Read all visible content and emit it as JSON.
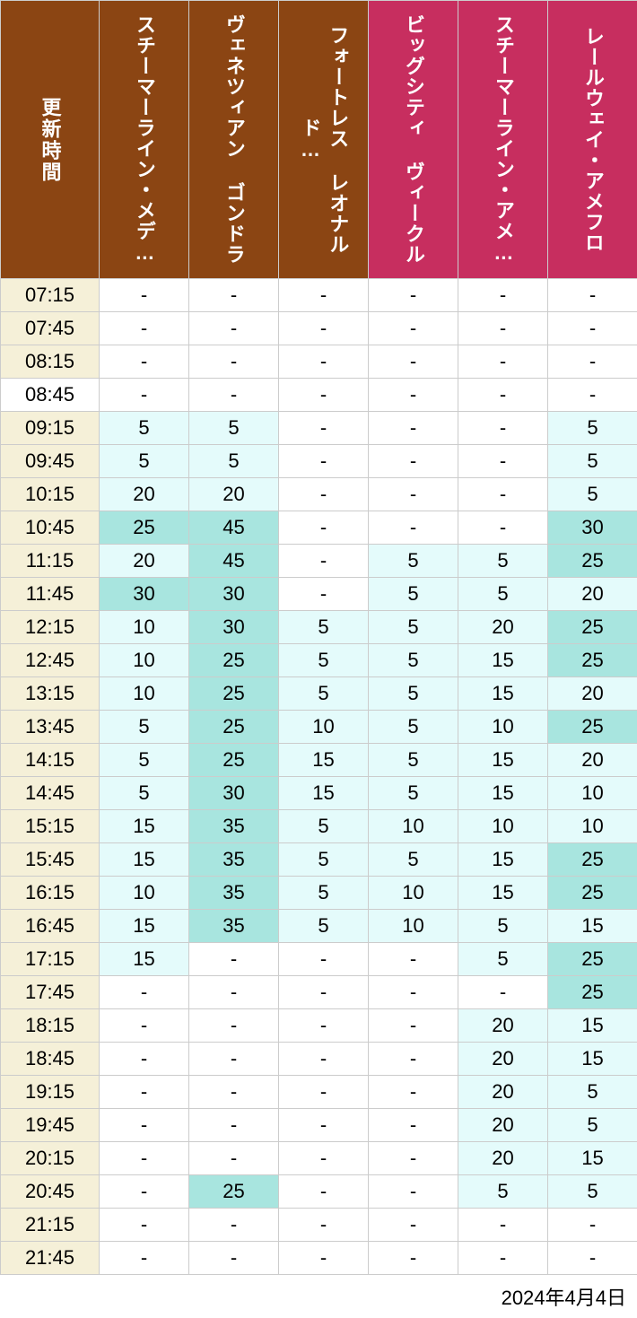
{
  "colors": {
    "header_brown": "#8b4513",
    "header_pink": "#c72e5f",
    "time_bg_cream": "#f5f0d8",
    "time_bg_white": "#ffffff",
    "cell_white": "#ffffff",
    "cell_light_cyan": "#e4fbfb",
    "cell_cyan": "#a8e5df",
    "border": "#cccccc",
    "text_dark": "#333333"
  },
  "fonts": {
    "header_size": 22,
    "cell_size": 22,
    "footer_size": 22
  },
  "headers": {
    "time": "更新時間",
    "attractions": [
      {
        "label": "スチーマーライン・メデ…",
        "color": "#8b4513"
      },
      {
        "label": "ヴェネツィアン ゴンドラ",
        "color": "#8b4513"
      },
      {
        "label": "フォートレス レオナルド…",
        "color": "#8b4513"
      },
      {
        "label": "ビッグシティ ヴィークル",
        "color": "#c72e5f"
      },
      {
        "label": "スチーマーライン・アメ…",
        "color": "#c72e5f"
      },
      {
        "label": "レールウェイ・アメフロ",
        "color": "#c72e5f"
      }
    ]
  },
  "rows": [
    {
      "time": "07:15",
      "time_bg": "#f5f0d8",
      "cells": [
        {
          "v": "-",
          "bg": "#ffffff"
        },
        {
          "v": "-",
          "bg": "#ffffff"
        },
        {
          "v": "-",
          "bg": "#ffffff"
        },
        {
          "v": "-",
          "bg": "#ffffff"
        },
        {
          "v": "-",
          "bg": "#ffffff"
        },
        {
          "v": "-",
          "bg": "#ffffff"
        }
      ]
    },
    {
      "time": "07:45",
      "time_bg": "#f5f0d8",
      "cells": [
        {
          "v": "-",
          "bg": "#ffffff"
        },
        {
          "v": "-",
          "bg": "#ffffff"
        },
        {
          "v": "-",
          "bg": "#ffffff"
        },
        {
          "v": "-",
          "bg": "#ffffff"
        },
        {
          "v": "-",
          "bg": "#ffffff"
        },
        {
          "v": "-",
          "bg": "#ffffff"
        }
      ]
    },
    {
      "time": "08:15",
      "time_bg": "#f5f0d8",
      "cells": [
        {
          "v": "-",
          "bg": "#ffffff"
        },
        {
          "v": "-",
          "bg": "#ffffff"
        },
        {
          "v": "-",
          "bg": "#ffffff"
        },
        {
          "v": "-",
          "bg": "#ffffff"
        },
        {
          "v": "-",
          "bg": "#ffffff"
        },
        {
          "v": "-",
          "bg": "#ffffff"
        }
      ]
    },
    {
      "time": "08:45",
      "time_bg": "#ffffff",
      "cells": [
        {
          "v": "-",
          "bg": "#ffffff"
        },
        {
          "v": "-",
          "bg": "#ffffff"
        },
        {
          "v": "-",
          "bg": "#ffffff"
        },
        {
          "v": "-",
          "bg": "#ffffff"
        },
        {
          "v": "-",
          "bg": "#ffffff"
        },
        {
          "v": "-",
          "bg": "#ffffff"
        }
      ]
    },
    {
      "time": "09:15",
      "time_bg": "#f5f0d8",
      "cells": [
        {
          "v": "5",
          "bg": "#e4fbfb"
        },
        {
          "v": "5",
          "bg": "#e4fbfb"
        },
        {
          "v": "-",
          "bg": "#ffffff"
        },
        {
          "v": "-",
          "bg": "#ffffff"
        },
        {
          "v": "-",
          "bg": "#ffffff"
        },
        {
          "v": "5",
          "bg": "#e4fbfb"
        }
      ]
    },
    {
      "time": "09:45",
      "time_bg": "#f5f0d8",
      "cells": [
        {
          "v": "5",
          "bg": "#e4fbfb"
        },
        {
          "v": "5",
          "bg": "#e4fbfb"
        },
        {
          "v": "-",
          "bg": "#ffffff"
        },
        {
          "v": "-",
          "bg": "#ffffff"
        },
        {
          "v": "-",
          "bg": "#ffffff"
        },
        {
          "v": "5",
          "bg": "#e4fbfb"
        }
      ]
    },
    {
      "time": "10:15",
      "time_bg": "#f5f0d8",
      "cells": [
        {
          "v": "20",
          "bg": "#e4fbfb"
        },
        {
          "v": "20",
          "bg": "#e4fbfb"
        },
        {
          "v": "-",
          "bg": "#ffffff"
        },
        {
          "v": "-",
          "bg": "#ffffff"
        },
        {
          "v": "-",
          "bg": "#ffffff"
        },
        {
          "v": "5",
          "bg": "#e4fbfb"
        }
      ]
    },
    {
      "time": "10:45",
      "time_bg": "#f5f0d8",
      "cells": [
        {
          "v": "25",
          "bg": "#a8e5df"
        },
        {
          "v": "45",
          "bg": "#a8e5df"
        },
        {
          "v": "-",
          "bg": "#ffffff"
        },
        {
          "v": "-",
          "bg": "#ffffff"
        },
        {
          "v": "-",
          "bg": "#ffffff"
        },
        {
          "v": "30",
          "bg": "#a8e5df"
        }
      ]
    },
    {
      "time": "11:15",
      "time_bg": "#f5f0d8",
      "cells": [
        {
          "v": "20",
          "bg": "#e4fbfb"
        },
        {
          "v": "45",
          "bg": "#a8e5df"
        },
        {
          "v": "-",
          "bg": "#ffffff"
        },
        {
          "v": "5",
          "bg": "#e4fbfb"
        },
        {
          "v": "5",
          "bg": "#e4fbfb"
        },
        {
          "v": "25",
          "bg": "#a8e5df"
        }
      ]
    },
    {
      "time": "11:45",
      "time_bg": "#f5f0d8",
      "cells": [
        {
          "v": "30",
          "bg": "#a8e5df"
        },
        {
          "v": "30",
          "bg": "#a8e5df"
        },
        {
          "v": "-",
          "bg": "#ffffff"
        },
        {
          "v": "5",
          "bg": "#e4fbfb"
        },
        {
          "v": "5",
          "bg": "#e4fbfb"
        },
        {
          "v": "20",
          "bg": "#e4fbfb"
        }
      ]
    },
    {
      "time": "12:15",
      "time_bg": "#f5f0d8",
      "cells": [
        {
          "v": "10",
          "bg": "#e4fbfb"
        },
        {
          "v": "30",
          "bg": "#a8e5df"
        },
        {
          "v": "5",
          "bg": "#e4fbfb"
        },
        {
          "v": "5",
          "bg": "#e4fbfb"
        },
        {
          "v": "20",
          "bg": "#e4fbfb"
        },
        {
          "v": "25",
          "bg": "#a8e5df"
        }
      ]
    },
    {
      "time": "12:45",
      "time_bg": "#f5f0d8",
      "cells": [
        {
          "v": "10",
          "bg": "#e4fbfb"
        },
        {
          "v": "25",
          "bg": "#a8e5df"
        },
        {
          "v": "5",
          "bg": "#e4fbfb"
        },
        {
          "v": "5",
          "bg": "#e4fbfb"
        },
        {
          "v": "15",
          "bg": "#e4fbfb"
        },
        {
          "v": "25",
          "bg": "#a8e5df"
        }
      ]
    },
    {
      "time": "13:15",
      "time_bg": "#f5f0d8",
      "cells": [
        {
          "v": "10",
          "bg": "#e4fbfb"
        },
        {
          "v": "25",
          "bg": "#a8e5df"
        },
        {
          "v": "5",
          "bg": "#e4fbfb"
        },
        {
          "v": "5",
          "bg": "#e4fbfb"
        },
        {
          "v": "15",
          "bg": "#e4fbfb"
        },
        {
          "v": "20",
          "bg": "#e4fbfb"
        }
      ]
    },
    {
      "time": "13:45",
      "time_bg": "#f5f0d8",
      "cells": [
        {
          "v": "5",
          "bg": "#e4fbfb"
        },
        {
          "v": "25",
          "bg": "#a8e5df"
        },
        {
          "v": "10",
          "bg": "#e4fbfb"
        },
        {
          "v": "5",
          "bg": "#e4fbfb"
        },
        {
          "v": "10",
          "bg": "#e4fbfb"
        },
        {
          "v": "25",
          "bg": "#a8e5df"
        }
      ]
    },
    {
      "time": "14:15",
      "time_bg": "#f5f0d8",
      "cells": [
        {
          "v": "5",
          "bg": "#e4fbfb"
        },
        {
          "v": "25",
          "bg": "#a8e5df"
        },
        {
          "v": "15",
          "bg": "#e4fbfb"
        },
        {
          "v": "5",
          "bg": "#e4fbfb"
        },
        {
          "v": "15",
          "bg": "#e4fbfb"
        },
        {
          "v": "20",
          "bg": "#e4fbfb"
        }
      ]
    },
    {
      "time": "14:45",
      "time_bg": "#f5f0d8",
      "cells": [
        {
          "v": "5",
          "bg": "#e4fbfb"
        },
        {
          "v": "30",
          "bg": "#a8e5df"
        },
        {
          "v": "15",
          "bg": "#e4fbfb"
        },
        {
          "v": "5",
          "bg": "#e4fbfb"
        },
        {
          "v": "15",
          "bg": "#e4fbfb"
        },
        {
          "v": "10",
          "bg": "#e4fbfb"
        }
      ]
    },
    {
      "time": "15:15",
      "time_bg": "#f5f0d8",
      "cells": [
        {
          "v": "15",
          "bg": "#e4fbfb"
        },
        {
          "v": "35",
          "bg": "#a8e5df"
        },
        {
          "v": "5",
          "bg": "#e4fbfb"
        },
        {
          "v": "10",
          "bg": "#e4fbfb"
        },
        {
          "v": "10",
          "bg": "#e4fbfb"
        },
        {
          "v": "10",
          "bg": "#e4fbfb"
        }
      ]
    },
    {
      "time": "15:45",
      "time_bg": "#f5f0d8",
      "cells": [
        {
          "v": "15",
          "bg": "#e4fbfb"
        },
        {
          "v": "35",
          "bg": "#a8e5df"
        },
        {
          "v": "5",
          "bg": "#e4fbfb"
        },
        {
          "v": "5",
          "bg": "#e4fbfb"
        },
        {
          "v": "15",
          "bg": "#e4fbfb"
        },
        {
          "v": "25",
          "bg": "#a8e5df"
        }
      ]
    },
    {
      "time": "16:15",
      "time_bg": "#f5f0d8",
      "cells": [
        {
          "v": "10",
          "bg": "#e4fbfb"
        },
        {
          "v": "35",
          "bg": "#a8e5df"
        },
        {
          "v": "5",
          "bg": "#e4fbfb"
        },
        {
          "v": "10",
          "bg": "#e4fbfb"
        },
        {
          "v": "15",
          "bg": "#e4fbfb"
        },
        {
          "v": "25",
          "bg": "#a8e5df"
        }
      ]
    },
    {
      "time": "16:45",
      "time_bg": "#f5f0d8",
      "cells": [
        {
          "v": "15",
          "bg": "#e4fbfb"
        },
        {
          "v": "35",
          "bg": "#a8e5df"
        },
        {
          "v": "5",
          "bg": "#e4fbfb"
        },
        {
          "v": "10",
          "bg": "#e4fbfb"
        },
        {
          "v": "5",
          "bg": "#e4fbfb"
        },
        {
          "v": "15",
          "bg": "#e4fbfb"
        }
      ]
    },
    {
      "time": "17:15",
      "time_bg": "#f5f0d8",
      "cells": [
        {
          "v": "15",
          "bg": "#e4fbfb"
        },
        {
          "v": "-",
          "bg": "#ffffff"
        },
        {
          "v": "-",
          "bg": "#ffffff"
        },
        {
          "v": "-",
          "bg": "#ffffff"
        },
        {
          "v": "5",
          "bg": "#e4fbfb"
        },
        {
          "v": "25",
          "bg": "#a8e5df"
        }
      ]
    },
    {
      "time": "17:45",
      "time_bg": "#f5f0d8",
      "cells": [
        {
          "v": "-",
          "bg": "#ffffff"
        },
        {
          "v": "-",
          "bg": "#ffffff"
        },
        {
          "v": "-",
          "bg": "#ffffff"
        },
        {
          "v": "-",
          "bg": "#ffffff"
        },
        {
          "v": "-",
          "bg": "#ffffff"
        },
        {
          "v": "25",
          "bg": "#a8e5df"
        }
      ]
    },
    {
      "time": "18:15",
      "time_bg": "#f5f0d8",
      "cells": [
        {
          "v": "-",
          "bg": "#ffffff"
        },
        {
          "v": "-",
          "bg": "#ffffff"
        },
        {
          "v": "-",
          "bg": "#ffffff"
        },
        {
          "v": "-",
          "bg": "#ffffff"
        },
        {
          "v": "20",
          "bg": "#e4fbfb"
        },
        {
          "v": "15",
          "bg": "#e4fbfb"
        }
      ]
    },
    {
      "time": "18:45",
      "time_bg": "#f5f0d8",
      "cells": [
        {
          "v": "-",
          "bg": "#ffffff"
        },
        {
          "v": "-",
          "bg": "#ffffff"
        },
        {
          "v": "-",
          "bg": "#ffffff"
        },
        {
          "v": "-",
          "bg": "#ffffff"
        },
        {
          "v": "20",
          "bg": "#e4fbfb"
        },
        {
          "v": "15",
          "bg": "#e4fbfb"
        }
      ]
    },
    {
      "time": "19:15",
      "time_bg": "#f5f0d8",
      "cells": [
        {
          "v": "-",
          "bg": "#ffffff"
        },
        {
          "v": "-",
          "bg": "#ffffff"
        },
        {
          "v": "-",
          "bg": "#ffffff"
        },
        {
          "v": "-",
          "bg": "#ffffff"
        },
        {
          "v": "20",
          "bg": "#e4fbfb"
        },
        {
          "v": "5",
          "bg": "#e4fbfb"
        }
      ]
    },
    {
      "time": "19:45",
      "time_bg": "#f5f0d8",
      "cells": [
        {
          "v": "-",
          "bg": "#ffffff"
        },
        {
          "v": "-",
          "bg": "#ffffff"
        },
        {
          "v": "-",
          "bg": "#ffffff"
        },
        {
          "v": "-",
          "bg": "#ffffff"
        },
        {
          "v": "20",
          "bg": "#e4fbfb"
        },
        {
          "v": "5",
          "bg": "#e4fbfb"
        }
      ]
    },
    {
      "time": "20:15",
      "time_bg": "#f5f0d8",
      "cells": [
        {
          "v": "-",
          "bg": "#ffffff"
        },
        {
          "v": "-",
          "bg": "#ffffff"
        },
        {
          "v": "-",
          "bg": "#ffffff"
        },
        {
          "v": "-",
          "bg": "#ffffff"
        },
        {
          "v": "20",
          "bg": "#e4fbfb"
        },
        {
          "v": "15",
          "bg": "#e4fbfb"
        }
      ]
    },
    {
      "time": "20:45",
      "time_bg": "#f5f0d8",
      "cells": [
        {
          "v": "-",
          "bg": "#ffffff"
        },
        {
          "v": "25",
          "bg": "#a8e5df"
        },
        {
          "v": "-",
          "bg": "#ffffff"
        },
        {
          "v": "-",
          "bg": "#ffffff"
        },
        {
          "v": "5",
          "bg": "#e4fbfb"
        },
        {
          "v": "5",
          "bg": "#e4fbfb"
        }
      ]
    },
    {
      "time": "21:15",
      "time_bg": "#f5f0d8",
      "cells": [
        {
          "v": "-",
          "bg": "#ffffff"
        },
        {
          "v": "-",
          "bg": "#ffffff"
        },
        {
          "v": "-",
          "bg": "#ffffff"
        },
        {
          "v": "-",
          "bg": "#ffffff"
        },
        {
          "v": "-",
          "bg": "#ffffff"
        },
        {
          "v": "-",
          "bg": "#ffffff"
        }
      ]
    },
    {
      "time": "21:45",
      "time_bg": "#f5f0d8",
      "cells": [
        {
          "v": "-",
          "bg": "#ffffff"
        },
        {
          "v": "-",
          "bg": "#ffffff"
        },
        {
          "v": "-",
          "bg": "#ffffff"
        },
        {
          "v": "-",
          "bg": "#ffffff"
        },
        {
          "v": "-",
          "bg": "#ffffff"
        },
        {
          "v": "-",
          "bg": "#ffffff"
        }
      ]
    }
  ],
  "footer": {
    "date": "2024年4月4日"
  }
}
